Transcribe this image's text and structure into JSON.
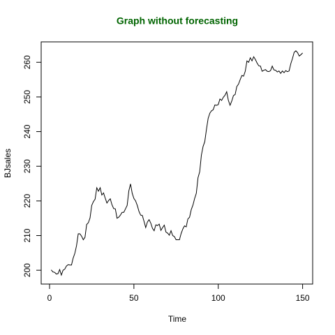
{
  "chart_data": {
    "type": "line",
    "title": "Graph without forecasting",
    "xlabel": "Time",
    "ylabel": "BJsales",
    "color": "#000000",
    "x": [
      1,
      2,
      3,
      4,
      5,
      6,
      7,
      8,
      9,
      10,
      11,
      12,
      13,
      14,
      15,
      16,
      17,
      18,
      19,
      20,
      21,
      22,
      23,
      24,
      25,
      26,
      27,
      28,
      29,
      30,
      31,
      32,
      33,
      34,
      35,
      36,
      37,
      38,
      39,
      40,
      41,
      42,
      43,
      44,
      45,
      46,
      47,
      48,
      49,
      50,
      51,
      52,
      53,
      54,
      55,
      56,
      57,
      58,
      59,
      60,
      61,
      62,
      63,
      64,
      65,
      66,
      67,
      68,
      69,
      70,
      71,
      72,
      73,
      74,
      75,
      76,
      77,
      78,
      79,
      80,
      81,
      82,
      83,
      84,
      85,
      86,
      87,
      88,
      89,
      90,
      91,
      92,
      93,
      94,
      95,
      96,
      97,
      98,
      99,
      100,
      101,
      102,
      103,
      104,
      105,
      106,
      107,
      108,
      109,
      110,
      111,
      112,
      113,
      114,
      115,
      116,
      117,
      118,
      119,
      120,
      121,
      122,
      123,
      124,
      125,
      126,
      127,
      128,
      129,
      130,
      131,
      132,
      133,
      134,
      135,
      136,
      137,
      138,
      139,
      140,
      141,
      142,
      143,
      144,
      145,
      146,
      147,
      148,
      149,
      150
    ],
    "values": [
      200.1,
      199.5,
      199.4,
      198.9,
      199.0,
      200.2,
      198.6,
      200.0,
      200.3,
      201.2,
      201.6,
      201.5,
      201.5,
      203.5,
      204.9,
      207.1,
      210.5,
      210.5,
      209.8,
      208.8,
      209.5,
      213.2,
      213.7,
      215.1,
      218.7,
      219.8,
      220.5,
      223.8,
      222.8,
      223.8,
      221.7,
      222.3,
      220.8,
      219.4,
      220.1,
      220.6,
      218.9,
      217.8,
      217.7,
      215.0,
      215.3,
      215.9,
      216.7,
      216.7,
      217.7,
      218.7,
      222.9,
      224.9,
      222.2,
      220.7,
      220.0,
      218.7,
      217.0,
      215.9,
      215.8,
      214.1,
      212.3,
      213.9,
      214.6,
      213.6,
      212.1,
      211.4,
      213.1,
      212.9,
      213.3,
      211.5,
      212.3,
      213.0,
      211.0,
      210.7,
      210.1,
      211.4,
      210.0,
      209.7,
      208.8,
      208.8,
      208.8,
      210.6,
      211.9,
      212.8,
      212.5,
      214.8,
      215.3,
      217.5,
      218.8,
      220.7,
      222.2,
      226.7,
      228.4,
      233.2,
      235.7,
      237.1,
      240.6,
      243.8,
      245.3,
      246.0,
      246.3,
      247.7,
      247.6,
      247.8,
      249.4,
      249.0,
      249.9,
      250.5,
      251.5,
      249.0,
      247.6,
      248.8,
      250.4,
      250.7,
      253.0,
      253.7,
      255.0,
      256.2,
      256.0,
      257.4,
      260.4,
      260.0,
      261.3,
      260.4,
      261.6,
      260.8,
      259.8,
      259.0,
      258.9,
      257.4,
      257.7,
      257.9,
      257.4,
      257.3,
      257.6,
      258.9,
      257.8,
      257.7,
      257.2,
      257.5,
      256.8,
      257.5,
      257.0,
      257.6,
      257.3,
      257.5,
      259.6,
      261.1,
      262.9,
      263.3,
      262.8,
      261.8,
      262.2,
      262.7
    ],
    "xlim": [
      -4.96,
      155.96
    ],
    "ylim": [
      196.01,
      265.89
    ],
    "xticks": [
      0,
      50,
      100,
      150
    ],
    "yticks": [
      200,
      210,
      220,
      230,
      240,
      250,
      260
    ]
  }
}
